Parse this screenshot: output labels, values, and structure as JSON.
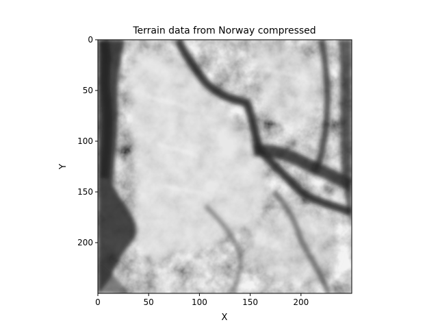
{
  "chart_data": {
    "type": "heatmap",
    "title": "Terrain data from Norway compressed",
    "xlabel": "X",
    "ylabel": "Y",
    "colormap": "gray",
    "xlim": [
      0,
      250
    ],
    "ylim": [
      250,
      0
    ],
    "x_ticks": [
      0,
      50,
      100,
      150,
      200
    ],
    "y_ticks": [
      0,
      50,
      100,
      150,
      200
    ],
    "grid": false
  }
}
